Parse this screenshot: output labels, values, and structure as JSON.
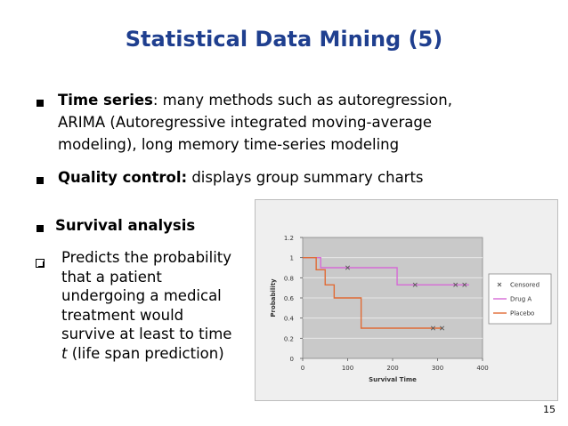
{
  "slide": {
    "title": "Statistical Data Mining (5)",
    "page_number": "15"
  },
  "bullets": {
    "time_series": {
      "bold": "Time series",
      "line1": ": many methods such as autoregression,",
      "line2": "ARIMA (Autoregressive integrated moving-average",
      "line3": "modeling), long memory time-series modeling"
    },
    "quality_control": {
      "bold": "Quality control:",
      "text": " displays group summary charts"
    },
    "survival": {
      "bold": "Survival analysis",
      "sub_lines": [
        "Predicts the probability",
        "that a patient",
        "undergoing a medical",
        "treatment would",
        "survive at least to time",
        "(life span prediction)"
      ],
      "sub_italic": "t"
    }
  },
  "chart_data": {
    "type": "line",
    "xlabel": "Survival Time",
    "ylabel": "Probability",
    "xlim": [
      0,
      400
    ],
    "ylim": [
      0,
      1.2
    ],
    "x_ticks": [
      "0",
      "100",
      "200",
      "300",
      "400"
    ],
    "y_ticks": [
      "0",
      "0.2",
      "0.4",
      "0.6",
      "0.8",
      "1",
      "1.2"
    ],
    "legend_position": "right",
    "legend": [
      "Censored",
      "Drug A",
      "Placebo"
    ],
    "series": [
      {
        "name": "Drug A",
        "color": "#d66ad6",
        "step_x": [
          0,
          40,
          210,
          370
        ],
        "step_y": [
          1.0,
          0.9,
          0.73,
          0.73
        ],
        "censored_x": [
          100,
          250,
          340,
          360
        ]
      },
      {
        "name": "Placebo",
        "color": "#e06b36",
        "step_x": [
          0,
          30,
          50,
          70,
          130,
          310
        ],
        "step_y": [
          1.0,
          0.88,
          0.73,
          0.6,
          0.3,
          0.3
        ],
        "censored_x": [
          290,
          310
        ]
      }
    ],
    "censored_color": "#555555"
  }
}
